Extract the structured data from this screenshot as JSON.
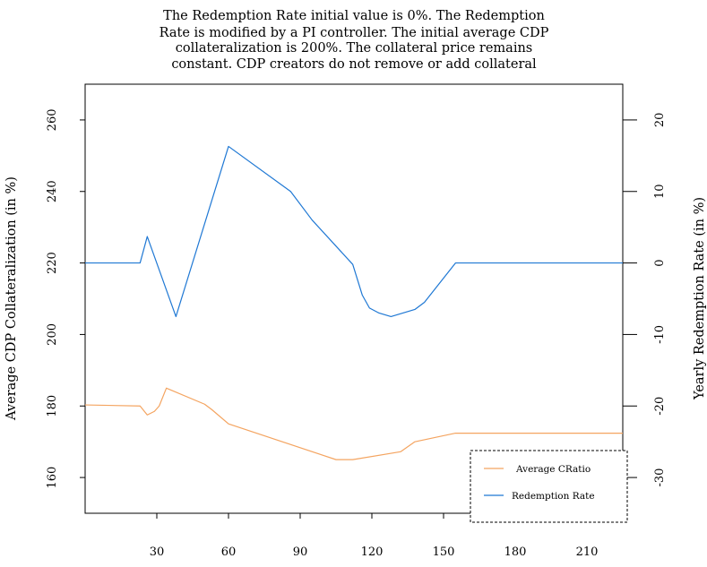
{
  "chart_data": {
    "type": "line",
    "title_lines": [
      "The Redemption Rate initial value is 0%. The Redemption",
      "Rate is modified by a PI controller. The initial average CDP",
      "collateralization is 200%. The collateral price remains",
      "constant. CDP creators do not remove or add collateral"
    ],
    "xlabel": "",
    "ylabel_left": "Average CDP Collateralization (in %)",
    "ylabel_right": "Yearly Redemption Rate (in %)",
    "xlim": [
      0,
      225
    ],
    "ylim_left": [
      150,
      270
    ],
    "ylim_right": [
      -35,
      25
    ],
    "x_ticks": [
      30,
      60,
      90,
      120,
      150,
      180,
      210
    ],
    "y_ticks_left": [
      160,
      180,
      200,
      220,
      240,
      260
    ],
    "y_ticks_right": [
      -30,
      -20,
      -10,
      0,
      10,
      20
    ],
    "grid": false,
    "legend_position": "bottom-right",
    "series": [
      {
        "name": "Average CRatio",
        "axis": "left",
        "color": "#f4a460",
        "x": [
          0,
          23,
          26,
          29,
          31,
          34,
          50,
          53,
          60,
          105,
          112,
          132,
          138,
          155,
          225
        ],
        "y": [
          180.3,
          180,
          177.5,
          178.5,
          180,
          185,
          180.5,
          179,
          175,
          165,
          165,
          167.2,
          170,
          172.4,
          172.4
        ]
      },
      {
        "name": "Redemption Rate",
        "axis": "right",
        "color": "#1f78d4",
        "x": [
          0,
          23,
          26,
          38,
          60,
          86,
          95,
          112,
          116,
          119,
          123,
          128,
          138,
          142,
          155,
          225
        ],
        "y": [
          0,
          0,
          3.7,
          -7.5,
          16.3,
          10,
          6,
          -0.2,
          -4.5,
          -6.3,
          -7,
          -7.5,
          -6.5,
          -5.5,
          0,
          0
        ]
      }
    ]
  }
}
